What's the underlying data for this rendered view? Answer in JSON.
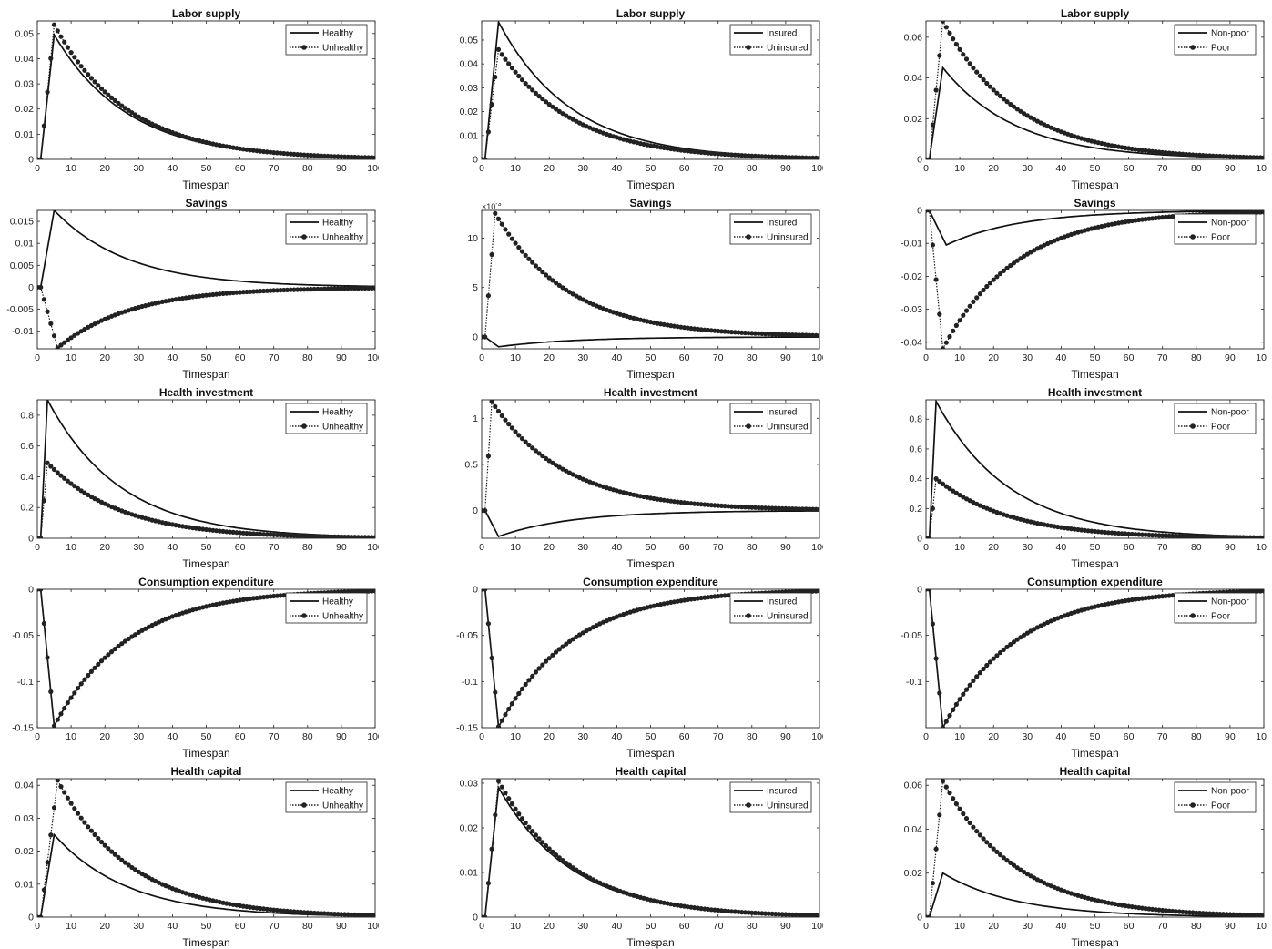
{
  "chart_data": [
    {
      "type": "line",
      "title": "Labor supply",
      "xlabel": "Timespan",
      "ylabel": "",
      "xlim": [
        0,
        100
      ],
      "ylim": [
        0,
        0.055
      ],
      "yticks": [
        0,
        0.01,
        0.02,
        0.03,
        0.04,
        0.05
      ],
      "ytick_labels": [
        "0",
        "0.01",
        "0.02",
        "0.03",
        "0.04",
        "0.05"
      ],
      "xticks": [
        0,
        10,
        20,
        30,
        40,
        50,
        60,
        70,
        80,
        90,
        100
      ],
      "legend_position": "top-right",
      "exponent_label": "",
      "series": [
        {
          "name": "Healthy",
          "style": "solid",
          "peak": 0.0495,
          "peak_t": 5,
          "end": 0.0
        },
        {
          "name": "Unhealthy",
          "style": "dotted-markers",
          "peak": 0.0535,
          "peak_t": 5,
          "end": 0.0
        }
      ]
    },
    {
      "type": "line",
      "title": "Labor supply",
      "xlabel": "Timespan",
      "ylabel": "",
      "xlim": [
        0,
        100
      ],
      "ylim": [
        0,
        0.058
      ],
      "yticks": [
        0,
        0.01,
        0.02,
        0.03,
        0.04,
        0.05
      ],
      "ytick_labels": [
        "0",
        "0.01",
        "0.02",
        "0.03",
        "0.04",
        "0.05"
      ],
      "xticks": [
        0,
        10,
        20,
        30,
        40,
        50,
        60,
        70,
        80,
        90,
        100
      ],
      "legend_position": "top-right",
      "exponent_label": "",
      "series": [
        {
          "name": "Insured",
          "style": "solid",
          "peak": 0.0575,
          "peak_t": 5,
          "end": 0.0
        },
        {
          "name": "Uninsured",
          "style": "dotted-markers",
          "peak": 0.046,
          "peak_t": 5,
          "end": 0.0
        }
      ]
    },
    {
      "type": "line",
      "title": "Labor supply",
      "xlabel": "Timespan",
      "ylabel": "",
      "xlim": [
        0,
        100
      ],
      "ylim": [
        0,
        0.068
      ],
      "yticks": [
        0,
        0.02,
        0.04,
        0.06
      ],
      "ytick_labels": [
        "0",
        "0.02",
        "0.04",
        "0.06"
      ],
      "xticks": [
        0,
        10,
        20,
        30,
        40,
        50,
        60,
        70,
        80,
        90,
        100
      ],
      "legend_position": "top-right",
      "exponent_label": "",
      "series": [
        {
          "name": "Non-poor",
          "style": "solid",
          "peak": 0.045,
          "peak_t": 5,
          "end": 0.0
        },
        {
          "name": "Poor",
          "style": "dotted-markers",
          "peak": 0.068,
          "peak_t": 5,
          "end": 0.0
        }
      ]
    },
    {
      "type": "line",
      "title": "Savings",
      "xlabel": "Timespan",
      "ylabel": "",
      "xlim": [
        0,
        100
      ],
      "ylim": [
        -0.014,
        0.0175
      ],
      "yticks": [
        -0.01,
        -0.005,
        0,
        0.005,
        0.01,
        0.015
      ],
      "ytick_labels": [
        "-0.01",
        "-0.005",
        "0",
        "0.005",
        "0.01",
        "0.015"
      ],
      "xticks": [
        0,
        10,
        20,
        30,
        40,
        50,
        60,
        70,
        80,
        90,
        100
      ],
      "legend_position": "top-right",
      "exponent_label": "",
      "series": [
        {
          "name": "Healthy",
          "style": "solid",
          "peak": 0.0175,
          "peak_t": 5,
          "end": 0.0
        },
        {
          "name": "Unhealthy",
          "style": "dotted-markers",
          "peak": -0.0138,
          "peak_t": 6,
          "end": 0.0
        }
      ]
    },
    {
      "type": "line",
      "title": "Savings",
      "xlabel": "Timespan",
      "ylabel": "",
      "xlim": [
        0,
        100
      ],
      "ylim": [
        -1.2,
        12.8
      ],
      "yticks": [
        0,
        5,
        10
      ],
      "ytick_labels": [
        "0",
        "5",
        "10"
      ],
      "xticks": [
        0,
        10,
        20,
        30,
        40,
        50,
        60,
        70,
        80,
        90,
        100
      ],
      "legend_position": "top-right",
      "exponent_label": "×10^-3",
      "series": [
        {
          "name": "Insured",
          "style": "solid",
          "peak": -1.0,
          "peak_t": 5,
          "end": 0.0
        },
        {
          "name": "Uninsured",
          "style": "dotted-markers",
          "peak": 12.5,
          "peak_t": 4,
          "end": 0.0
        }
      ]
    },
    {
      "type": "line",
      "title": "Savings",
      "xlabel": "Timespan",
      "ylabel": "",
      "xlim": [
        0,
        100
      ],
      "ylim": [
        -0.042,
        0.0
      ],
      "yticks": [
        -0.04,
        -0.03,
        -0.02,
        -0.01,
        0
      ],
      "ytick_labels": [
        "-0.04",
        "-0.03",
        "-0.02",
        "-0.01",
        "0"
      ],
      "xticks": [
        0,
        10,
        20,
        30,
        40,
        50,
        60,
        70,
        80,
        90,
        100
      ],
      "legend_position": "top-right",
      "exponent_label": "",
      "series": [
        {
          "name": "Non-poor",
          "style": "solid",
          "peak": -0.0105,
          "peak_t": 6,
          "end": 0.0
        },
        {
          "name": "Poor",
          "style": "dotted-markers",
          "peak": -0.042,
          "peak_t": 5,
          "end": 0.0
        }
      ]
    },
    {
      "type": "line",
      "title": "Health investment",
      "xlabel": "Timespan",
      "ylabel": "",
      "xlim": [
        0,
        100
      ],
      "ylim": [
        0,
        0.9
      ],
      "yticks": [
        0,
        0.2,
        0.4,
        0.6,
        0.8
      ],
      "ytick_labels": [
        "0",
        "0.2",
        "0.4",
        "0.6",
        "0.8"
      ],
      "xticks": [
        0,
        10,
        20,
        30,
        40,
        50,
        60,
        70,
        80,
        90,
        100
      ],
      "legend_position": "top-right",
      "exponent_label": "",
      "series": [
        {
          "name": "Healthy",
          "style": "solid",
          "peak": 0.9,
          "peak_t": 3,
          "end": 0.0
        },
        {
          "name": "Unhealthy",
          "style": "dotted-markers",
          "peak": 0.49,
          "peak_t": 3,
          "end": 0.0
        }
      ]
    },
    {
      "type": "line",
      "title": "Health investment",
      "xlabel": "Timespan",
      "ylabel": "",
      "xlim": [
        0,
        100
      ],
      "ylim": [
        -0.3,
        1.2
      ],
      "yticks": [
        0,
        0.5,
        1
      ],
      "ytick_labels": [
        "0",
        "0.5",
        "1"
      ],
      "xticks": [
        0,
        10,
        20,
        30,
        40,
        50,
        60,
        70,
        80,
        90,
        100
      ],
      "legend_position": "top-right",
      "exponent_label": "",
      "series": [
        {
          "name": "Insured",
          "style": "solid",
          "peak": -0.28,
          "peak_t": 5,
          "end": 0.0
        },
        {
          "name": "Uninsured",
          "style": "dotted-markers",
          "peak": 1.18,
          "peak_t": 3,
          "end": 0.0
        }
      ]
    },
    {
      "type": "line",
      "title": "Health investment",
      "xlabel": "Timespan",
      "ylabel": "",
      "xlim": [
        0,
        100
      ],
      "ylim": [
        0,
        0.93
      ],
      "yticks": [
        0,
        0.2,
        0.4,
        0.6,
        0.8
      ],
      "ytick_labels": [
        "0",
        "0.2",
        "0.4",
        "0.6",
        "0.8"
      ],
      "xticks": [
        0,
        10,
        20,
        30,
        40,
        50,
        60,
        70,
        80,
        90,
        100
      ],
      "legend_position": "top-right",
      "exponent_label": "",
      "series": [
        {
          "name": "Non-poor",
          "style": "solid",
          "peak": 0.92,
          "peak_t": 3,
          "end": 0.0
        },
        {
          "name": "Poor",
          "style": "dotted-markers",
          "peak": 0.4,
          "peak_t": 3,
          "end": 0.0
        }
      ]
    },
    {
      "type": "line",
      "title": "Consumption expenditure",
      "xlabel": "Timespan",
      "ylabel": "",
      "xlim": [
        0,
        100
      ],
      "ylim": [
        -0.15,
        0.0
      ],
      "yticks": [
        -0.15,
        -0.1,
        -0.05,
        0
      ],
      "ytick_labels": [
        "-0.15",
        "-0.1",
        "-0.05",
        "0"
      ],
      "xticks": [
        0,
        10,
        20,
        30,
        40,
        50,
        60,
        70,
        80,
        90,
        100
      ],
      "legend_position": "top-right",
      "exponent_label": "",
      "series": [
        {
          "name": "Healthy",
          "style": "solid",
          "peak": -0.148,
          "peak_t": 5,
          "end": 0.0
        },
        {
          "name": "Unhealthy",
          "style": "dotted-markers",
          "peak": -0.148,
          "peak_t": 5,
          "end": 0.0
        }
      ]
    },
    {
      "type": "line",
      "title": "Consumption expenditure",
      "xlabel": "Timespan",
      "ylabel": "",
      "xlim": [
        0,
        100
      ],
      "ylim": [
        -0.15,
        0.0
      ],
      "yticks": [
        -0.15,
        -0.1,
        -0.05,
        0
      ],
      "ytick_labels": [
        "-0.15",
        "-0.1",
        "-0.05",
        "0"
      ],
      "xticks": [
        0,
        10,
        20,
        30,
        40,
        50,
        60,
        70,
        80,
        90,
        100
      ],
      "legend_position": "top-right",
      "exponent_label": "",
      "series": [
        {
          "name": "Insured",
          "style": "solid",
          "peak": -0.149,
          "peak_t": 5,
          "end": 0.0
        },
        {
          "name": "Uninsured",
          "style": "dotted-markers",
          "peak": -0.149,
          "peak_t": 5,
          "end": 0.0
        }
      ]
    },
    {
      "type": "line",
      "title": "Consumption expenditure",
      "xlabel": "Timespan",
      "ylabel": "",
      "xlim": [
        0,
        100
      ],
      "ylim": [
        -0.15,
        0.0
      ],
      "yticks": [
        -0.1,
        -0.05,
        0
      ],
      "ytick_labels": [
        "-0.1",
        "-0.05",
        "0"
      ],
      "xticks": [
        0,
        10,
        20,
        30,
        40,
        50,
        60,
        70,
        80,
        90,
        100
      ],
      "legend_position": "top-right",
      "exponent_label": "",
      "series": [
        {
          "name": "Non-poor",
          "style": "solid",
          "peak": -0.15,
          "peak_t": 5,
          "end": 0.0
        },
        {
          "name": "Poor",
          "style": "dotted-markers",
          "peak": -0.15,
          "peak_t": 5,
          "end": 0.0
        }
      ]
    },
    {
      "type": "line",
      "title": "Health capital",
      "xlabel": "Timespan",
      "ylabel": "",
      "xlim": [
        0,
        100
      ],
      "ylim": [
        0,
        0.042
      ],
      "yticks": [
        0,
        0.01,
        0.02,
        0.03,
        0.04
      ],
      "ytick_labels": [
        "0",
        "0.01",
        "0.02",
        "0.03",
        "0.04"
      ],
      "xticks": [
        0,
        10,
        20,
        30,
        40,
        50,
        60,
        70,
        80,
        90,
        100
      ],
      "legend_position": "top-right",
      "exponent_label": "",
      "series": [
        {
          "name": "Healthy",
          "style": "solid",
          "peak": 0.025,
          "peak_t": 5,
          "end": 0.0
        },
        {
          "name": "Unhealthy",
          "style": "dotted-markers",
          "peak": 0.0415,
          "peak_t": 6,
          "end": 0.0
        }
      ]
    },
    {
      "type": "line",
      "title": "Health capital",
      "xlabel": "Timespan",
      "ylabel": "",
      "xlim": [
        0,
        100
      ],
      "ylim": [
        0,
        0.031
      ],
      "yticks": [
        0,
        0.01,
        0.02,
        0.03
      ],
      "ytick_labels": [
        "0",
        "0.01",
        "0.02",
        "0.03"
      ],
      "xticks": [
        0,
        10,
        20,
        30,
        40,
        50,
        60,
        70,
        80,
        90,
        100
      ],
      "legend_position": "top-right",
      "exponent_label": "",
      "series": [
        {
          "name": "Insured",
          "style": "solid",
          "peak": 0.029,
          "peak_t": 5,
          "end": 0.0
        },
        {
          "name": "Uninsured",
          "style": "dotted-markers",
          "peak": 0.0305,
          "peak_t": 5,
          "end": 0.0
        }
      ]
    },
    {
      "type": "line",
      "title": "Health capital",
      "xlabel": "Timespan",
      "ylabel": "",
      "xlim": [
        0,
        100
      ],
      "ylim": [
        0,
        0.063
      ],
      "yticks": [
        0,
        0.02,
        0.04,
        0.06
      ],
      "ytick_labels": [
        "0",
        "0.02",
        "0.04",
        "0.06"
      ],
      "xticks": [
        0,
        10,
        20,
        30,
        40,
        50,
        60,
        70,
        80,
        90,
        100
      ],
      "legend_position": "top-right",
      "exponent_label": "",
      "series": [
        {
          "name": "Non-poor",
          "style": "solid",
          "peak": 0.02,
          "peak_t": 5,
          "end": 0.0
        },
        {
          "name": "Poor",
          "style": "dotted-markers",
          "peak": 0.062,
          "peak_t": 5,
          "end": 0.0
        }
      ]
    }
  ]
}
